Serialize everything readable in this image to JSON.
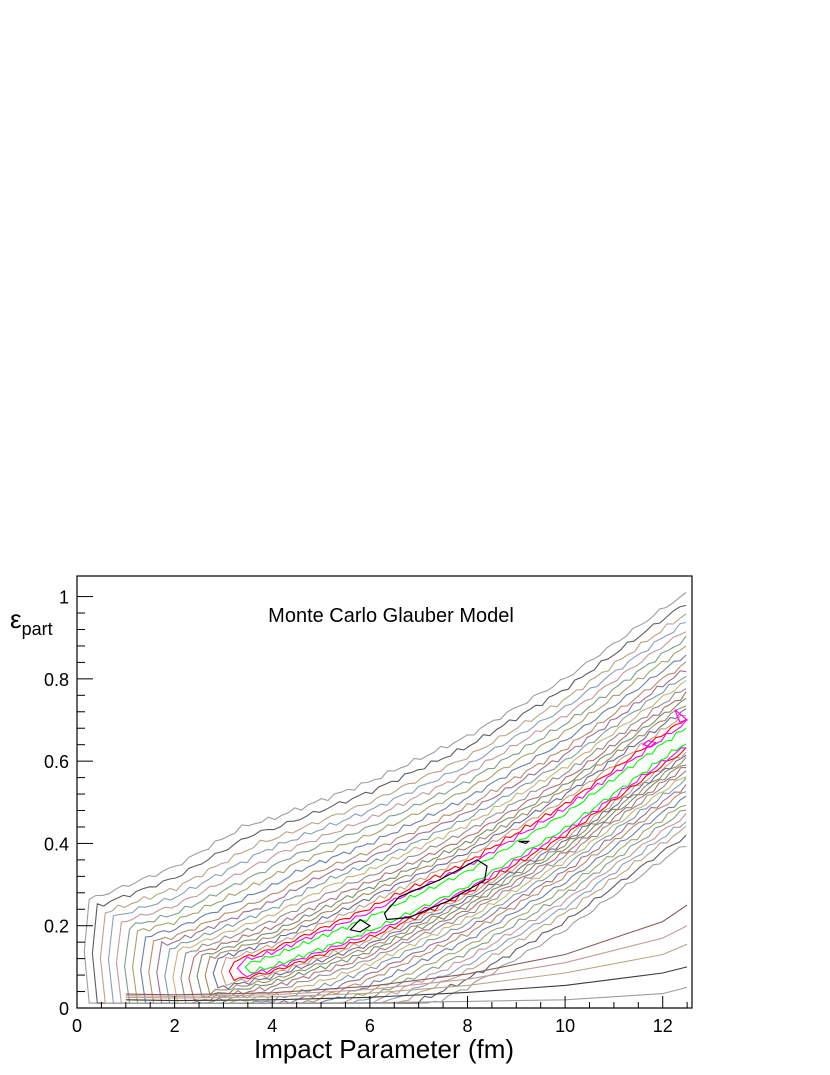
{
  "chart_data": {
    "type": "contour",
    "title": "Monte Carlo Glauber Model",
    "xlabel": "Impact Parameter (fm)",
    "ylabel": {
      "base": "ε",
      "subscript": "part"
    },
    "xlim": [
      0,
      12.6
    ],
    "ylim": [
      0,
      1.05
    ],
    "xticks": [
      0,
      2,
      4,
      6,
      8,
      10,
      12
    ],
    "yticks": [
      0,
      0.2,
      0.4,
      0.6,
      0.8,
      1
    ],
    "grid": false,
    "legend": "none",
    "ridge": {
      "x": [
        0.5,
        2,
        4,
        6,
        8,
        10,
        12,
        12.5
      ],
      "y": [
        0.04,
        0.05,
        0.11,
        0.2,
        0.31,
        0.45,
        0.62,
        0.66
      ]
    },
    "contours": [
      {
        "level": 1,
        "color": "#9e9e9e",
        "upper_offset": 0.35,
        "lower_offset": 0.26
      },
      {
        "level": 2,
        "color": "#5e5e5e",
        "upper_offset": 0.325,
        "lower_offset": 0.24
      },
      {
        "level": 3,
        "color": "#b8a487",
        "upper_offset": 0.3,
        "lower_offset": 0.22
      },
      {
        "level": 4,
        "color": "#8aa0b8",
        "upper_offset": 0.28,
        "lower_offset": 0.205
      },
      {
        "level": 5,
        "color": "#c49a9a",
        "upper_offset": 0.26,
        "lower_offset": 0.19
      },
      {
        "level": 6,
        "color": "#7fa08a",
        "upper_offset": 0.24,
        "lower_offset": 0.175
      },
      {
        "level": 7,
        "color": "#a3a36e",
        "upper_offset": 0.22,
        "lower_offset": 0.16
      },
      {
        "level": 8,
        "color": "#6c7fa8",
        "upper_offset": 0.2,
        "lower_offset": 0.145
      },
      {
        "level": 9,
        "color": "#b58c6a",
        "upper_offset": 0.18,
        "lower_offset": 0.13
      },
      {
        "level": 10,
        "color": "#9c6f8e",
        "upper_offset": 0.165,
        "lower_offset": 0.118
      },
      {
        "level": 11,
        "color": "#7a9f9f",
        "upper_offset": 0.15,
        "lower_offset": 0.105
      },
      {
        "level": 12,
        "color": "#c8b37a",
        "upper_offset": 0.135,
        "lower_offset": 0.093
      },
      {
        "level": 13,
        "color": "#8f8f8f",
        "upper_offset": 0.12,
        "lower_offset": 0.082
      },
      {
        "level": 14,
        "color": "#b07070",
        "upper_offset": 0.105,
        "lower_offset": 0.072
      },
      {
        "level": 15,
        "color": "#709070",
        "upper_offset": 0.092,
        "lower_offset": 0.062
      },
      {
        "level": 16,
        "color": "#a08a60",
        "upper_offset": 0.08,
        "lower_offset": 0.053
      },
      {
        "level": 17,
        "color": "#6a6a9a",
        "upper_offset": 0.068,
        "lower_offset": 0.045
      },
      {
        "level": 18,
        "color": "#c0a080",
        "upper_offset": 0.056,
        "lower_offset": 0.037
      },
      {
        "level": 19,
        "color": "#ff0000",
        "upper_offset": 0.045,
        "lower_offset": 0.03
      },
      {
        "level": 20,
        "color": "#ff00ff",
        "upper_offset": 0.035,
        "lower_offset": 0.022
      },
      {
        "level": 21,
        "color": "#00ff00",
        "upper_offset": 0.022,
        "lower_offset": 0.014
      }
    ],
    "peak_islands": [
      {
        "color": "#000000",
        "points": [
          [
            6.3,
            0.23
          ],
          [
            6.6,
            0.27
          ],
          [
            7.4,
            0.31
          ],
          [
            8.2,
            0.36
          ],
          [
            8.4,
            0.345
          ],
          [
            8.35,
            0.31
          ],
          [
            7.6,
            0.26
          ],
          [
            6.8,
            0.22
          ],
          [
            6.35,
            0.215
          ]
        ]
      },
      {
        "color": "#000000",
        "points": [
          [
            5.6,
            0.19
          ],
          [
            5.8,
            0.215
          ],
          [
            6.0,
            0.2
          ],
          [
            5.8,
            0.185
          ]
        ]
      },
      {
        "color": "#000000",
        "points": [
          [
            9.05,
            0.405
          ],
          [
            9.25,
            0.405
          ],
          [
            9.2,
            0.4
          ]
        ]
      },
      {
        "color": "#ff00ff",
        "points": [
          [
            11.6,
            0.64
          ],
          [
            11.7,
            0.65
          ],
          [
            11.85,
            0.645
          ],
          [
            11.75,
            0.635
          ]
        ]
      },
      {
        "color": "#ff00ff",
        "points": [
          [
            12.25,
            0.725
          ],
          [
            12.5,
            0.7
          ],
          [
            12.35,
            0.695
          ]
        ]
      }
    ],
    "lower_tail": {
      "x": [
        1.0,
        2,
        4,
        6,
        8,
        10,
        12,
        12.5
      ],
      "curves": [
        {
          "color": "#9e9e9e",
          "y": [
            0.012,
            0.011,
            0.012,
            0.013,
            0.016,
            0.02,
            0.035,
            0.05
          ]
        },
        {
          "color": "#3a3a3a",
          "y": [
            0.02,
            0.018,
            0.02,
            0.026,
            0.038,
            0.055,
            0.085,
            0.1
          ]
        },
        {
          "color": "#b8a487",
          "y": [
            0.026,
            0.024,
            0.027,
            0.036,
            0.055,
            0.085,
            0.13,
            0.155
          ]
        },
        {
          "color": "#c49a9a",
          "y": [
            0.03,
            0.028,
            0.032,
            0.045,
            0.07,
            0.11,
            0.17,
            0.2
          ]
        },
        {
          "color": "#8a5a5a",
          "y": [
            0.034,
            0.032,
            0.037,
            0.053,
            0.083,
            0.13,
            0.21,
            0.25
          ]
        }
      ]
    }
  }
}
